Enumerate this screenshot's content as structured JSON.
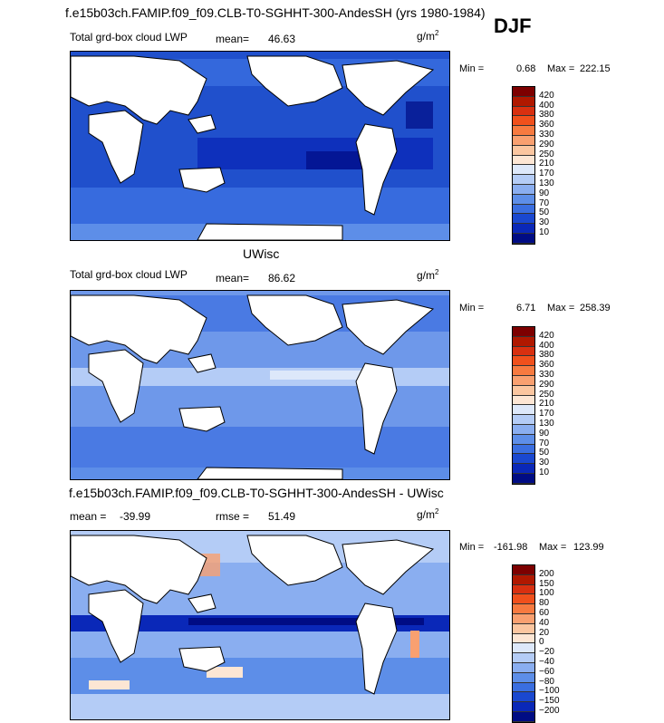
{
  "title": "f.e15b03ch.FAMIP.f09_f09.CLB-T0-SGHHT-300-AndesSH (yrs 1980-1984)",
  "season": "DJF",
  "panels": [
    {
      "id": "model",
      "heading": "",
      "left_label": "Total grd-box cloud LWP",
      "stat_label": "mean=",
      "stat_value": "46.63",
      "units": "g/m",
      "units_sup": "2",
      "min_label": "Min =",
      "min_value": "0.68",
      "max_label": "Max =",
      "max_value": "222.15",
      "colorbar": {
        "labels": [
          "420",
          "400",
          "380",
          "360",
          "330",
          "290",
          "250",
          "210",
          "170",
          "130",
          "90",
          "70",
          "50",
          "30",
          "10"
        ],
        "colors": [
          "#7d0000",
          "#b01800",
          "#d83010",
          "#f0501c",
          "#f77a40",
          "#f9a070",
          "#fbc6a0",
          "#fde6d4",
          "#dde8fa",
          "#b4ccf6",
          "#8aaef0",
          "#5d8ee8",
          "#3a6ee0",
          "#1a48d0",
          "#0a28b8",
          "#000c84"
        ]
      }
    },
    {
      "id": "obs",
      "heading": "UWisc",
      "left_label": "Total grd-box cloud LWP",
      "stat_label": "mean=",
      "stat_value": "86.62",
      "units": "g/m",
      "units_sup": "2",
      "min_label": "Min =",
      "min_value": "6.71",
      "max_label": "Max =",
      "max_value": "258.39",
      "colorbar": {
        "labels": [
          "420",
          "400",
          "380",
          "360",
          "330",
          "290",
          "250",
          "210",
          "170",
          "130",
          "90",
          "70",
          "50",
          "30",
          "10"
        ],
        "colors": [
          "#7d0000",
          "#b01800",
          "#d83010",
          "#f0501c",
          "#f77a40",
          "#f9a070",
          "#fbc6a0",
          "#fde6d4",
          "#dde8fa",
          "#b4ccf6",
          "#8aaef0",
          "#5d8ee8",
          "#3a6ee0",
          "#1a48d0",
          "#0a28b8",
          "#000c84"
        ]
      }
    },
    {
      "id": "diff",
      "heading": "f.e15b03ch.FAMIP.f09_f09.CLB-T0-SGHHT-300-AndesSH - UWisc",
      "left_label": "mean =",
      "left_value": "-39.99",
      "stat_label": "rmse =",
      "stat_value": "51.49",
      "units": "g/m",
      "units_sup": "2",
      "min_label": "Min =",
      "min_value": "-161.98",
      "max_label": "Max =",
      "max_value": "123.99",
      "colorbar": {
        "labels": [
          "200",
          "150",
          "100",
          "80",
          "60",
          "40",
          "20",
          "0",
          "−20",
          "−40",
          "−60",
          "−80",
          "−100",
          "−150",
          "−200"
        ],
        "colors": [
          "#7d0000",
          "#b01800",
          "#d83010",
          "#f0501c",
          "#f77a40",
          "#f9a070",
          "#fbc6a0",
          "#fde6d4",
          "#dde8fa",
          "#b4ccf6",
          "#8aaef0",
          "#5d8ee8",
          "#3a6ee0",
          "#1a48d0",
          "#0a28b8",
          "#000c84"
        ]
      }
    }
  ],
  "chart_data": {
    "type": "heatmap",
    "title": "f.e15b03ch.FAMIP.f09_f09.CLB-T0-SGHHT-300-AndesSH (yrs 1980-1984)",
    "season": "DJF",
    "maps": [
      {
        "variable": "Total grd-box cloud LWP",
        "units": "g/m2",
        "mean": 46.63,
        "min": 0.68,
        "max": 222.15,
        "levels": [
          10,
          30,
          50,
          70,
          90,
          130,
          170,
          210,
          250,
          290,
          330,
          360,
          380,
          400,
          420
        ]
      },
      {
        "name": "UWisc",
        "variable": "Total grd-box cloud LWP",
        "units": "g/m2",
        "mean": 86.62,
        "min": 6.71,
        "max": 258.39,
        "levels": [
          10,
          30,
          50,
          70,
          90,
          130,
          170,
          210,
          250,
          290,
          330,
          360,
          380,
          400,
          420
        ]
      },
      {
        "name": "f.e15b03ch.FAMIP.f09_f09.CLB-T0-SGHHT-300-AndesSH - UWisc",
        "units": "g/m2",
        "mean": -39.99,
        "rmse": 51.49,
        "min": -161.98,
        "max": 123.99,
        "levels": [
          -200,
          -150,
          -100,
          -80,
          -60,
          -40,
          -20,
          0,
          20,
          40,
          60,
          80,
          100,
          150,
          200
        ]
      }
    ]
  }
}
